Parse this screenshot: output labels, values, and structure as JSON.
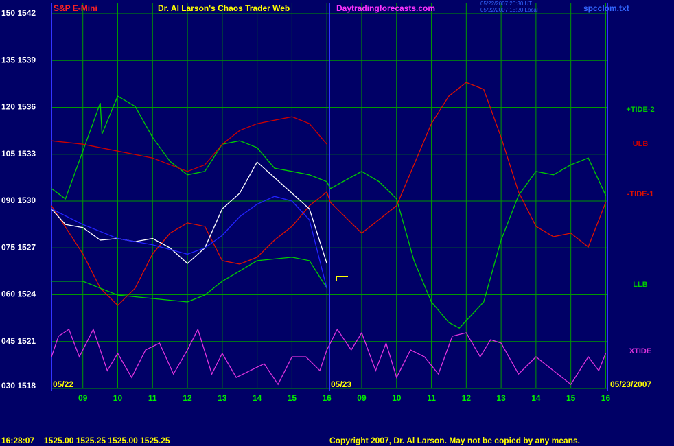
{
  "chart_data": {
    "type": "line",
    "title": "Dr. Al Larson's Chaos Trader Web",
    "symbol": "S&P E-Mini",
    "website": "Daytradingforecasts.com",
    "timestamps": [
      "05/22/2007 20:30 UT",
      "05/22/2007 15:20 Local"
    ],
    "file": "spcclom.txt",
    "date_labels": [
      "05/22",
      "05/23",
      "05/23/2007"
    ],
    "quote": {
      "time": "16:28:07",
      "prices": "1525.00 1525.25 1525.00 1525.25"
    },
    "copyright": "Copyright 2007, Dr. Al Larson. May not be copied by any means.",
    "grid": true,
    "xlim": [
      8.1,
      24.05
    ],
    "ylim": [
      30,
      150
    ],
    "y2lim": [
      1518,
      1542
    ],
    "xticks": [
      {
        "value": 9,
        "label": "09"
      },
      10,
      11,
      12,
      13,
      14,
      15,
      16,
      {
        "value": 17,
        "label": "09"
      },
      {
        "value": 18,
        "label": "10"
      },
      {
        "value": 19,
        "label": "11"
      },
      {
        "value": 20,
        "label": "12"
      },
      {
        "value": 21,
        "label": "13"
      },
      {
        "value": 22,
        "label": "14"
      },
      {
        "value": 23,
        "label": "15"
      },
      {
        "value": 24,
        "label": "16"
      }
    ],
    "yticks": [
      {
        "value": 150,
        "label": "150  1542"
      },
      {
        "value": 135,
        "label": "135  1539"
      },
      {
        "value": 120,
        "label": "120  1536"
      },
      {
        "value": 105,
        "label": "105  1533"
      },
      {
        "value": 90,
        "label": "090  1530"
      },
      {
        "value": 75,
        "label": "075  1527"
      },
      {
        "value": 60,
        "label": "060  1524"
      },
      {
        "value": 45,
        "label": "045  1521"
      },
      {
        "value": 30,
        "label": "030  1518"
      }
    ],
    "series": [
      {
        "name": "+TIDE-2",
        "color": "#00cc00",
        "x": [
          8.1,
          8.5,
          9,
          9.5,
          9.55,
          10,
          10.5,
          11,
          11.5,
          12,
          12.5,
          13,
          13.5,
          14,
          14.5,
          15,
          15.5,
          16,
          16.1,
          17,
          17.5,
          18,
          18.5,
          19,
          19.5,
          19.8,
          20.5,
          21,
          21.5,
          22,
          22.5,
          23,
          23.5,
          24
        ],
        "values": [
          94.0,
          90.7,
          106.0,
          121.4,
          111.5,
          123.6,
          120.3,
          110.4,
          102.7,
          98.4,
          99.5,
          108.2,
          109.3,
          107.1,
          100.5,
          99.5,
          98.4,
          96.2,
          94.0,
          99.5,
          96.2,
          90.7,
          70.9,
          57.7,
          51.1,
          49.3,
          57.7,
          77.5,
          91.8,
          99.5,
          98.4,
          101.6,
          103.8,
          91.8
        ]
      },
      {
        "name": "ULB",
        "color": "#cc0000",
        "x": [
          8.1,
          9,
          10,
          11,
          12,
          12.5,
          13,
          13.5,
          14,
          15,
          15.5,
          16
        ],
        "values": [
          109.3,
          108.2,
          106.0,
          103.8,
          99.5,
          101.6,
          108.2,
          112.6,
          114.8,
          117.0,
          114.8,
          108.2
        ]
      },
      {
        "name": "-TIDE-1",
        "color": "#dd1100",
        "x": [
          8.1,
          9,
          9.5,
          10,
          10.5,
          11,
          11.5,
          12,
          12.5,
          13,
          13.5,
          14,
          14.5,
          15,
          15.5,
          16,
          16.1,
          17,
          18,
          19,
          19.5,
          20,
          20.5,
          21,
          21.5,
          22,
          22.5,
          23,
          23.5,
          24
        ],
        "values": [
          88.5,
          73.1,
          62.1,
          56.6,
          62.1,
          73.1,
          79.7,
          83.0,
          81.9,
          70.9,
          69.8,
          72.0,
          77.5,
          81.9,
          88.5,
          92.9,
          89.6,
          79.7,
          88.5,
          114.8,
          123.6,
          128.0,
          125.8,
          110.4,
          92.9,
          81.9,
          78.6,
          79.7,
          75.3,
          89.6
        ]
      },
      {
        "name": "LLB",
        "color": "#00cc00",
        "x": [
          8.1,
          9,
          10,
          11,
          12,
          12.5,
          13,
          13.5,
          14,
          15,
          15.5,
          16
        ],
        "values": [
          64.3,
          64.3,
          59.9,
          58.8,
          57.7,
          59.9,
          64.3,
          67.6,
          70.9,
          72.0,
          70.9,
          62.1
        ]
      },
      {
        "name": "XTIDE",
        "color": "#dd33dd",
        "x": [
          8.1,
          8.3,
          8.6,
          8.9,
          9.3,
          9.7,
          10,
          10.4,
          10.8,
          11.2,
          11.6,
          12,
          12.3,
          12.7,
          13,
          13.4,
          13.8,
          14.2,
          14.6,
          15,
          15.4,
          15.8,
          16,
          16.3,
          16.7,
          17,
          17.4,
          17.7,
          18,
          18.4,
          18.8,
          19.2,
          19.6,
          20,
          20.4,
          20.7,
          21,
          21.5,
          22,
          22.5,
          23,
          23.5,
          23.8,
          24
        ],
        "values": [
          40.1,
          46.7,
          48.9,
          40.1,
          48.9,
          35.7,
          41.2,
          33.5,
          42.3,
          44.5,
          34.6,
          42.3,
          48.9,
          34.6,
          41.2,
          33.5,
          35.7,
          37.9,
          31.3,
          40.1,
          40.1,
          35.7,
          42.3,
          48.9,
          42.3,
          47.8,
          35.7,
          44.5,
          33.5,
          42.3,
          40.1,
          34.6,
          46.7,
          47.8,
          40.1,
          45.6,
          44.5,
          34.6,
          40.1,
          35.7,
          31.3,
          40.1,
          35.7,
          41.2
        ]
      },
      {
        "color": "#ffffff",
        "axis": "y2",
        "x": [
          8.1,
          8.5,
          9,
          9.5,
          10,
          10.5,
          11,
          11.5,
          12,
          12.5,
          13,
          13.5,
          14,
          14.5,
          15,
          15.5,
          16
        ],
        "values": [
          1529.5,
          1528.5,
          1528.3,
          1527.5,
          1527.6,
          1527.4,
          1527.6,
          1527.0,
          1526.0,
          1527.0,
          1529.5,
          1530.5,
          1532.5,
          1531.5,
          1530.5,
          1529.5,
          1526.0
        ]
      },
      {
        "color": "#2222ff",
        "axis": "y2",
        "x": [
          8.1,
          9,
          10,
          11,
          12,
          12.5,
          13,
          13.5,
          14,
          14.5,
          15,
          15.5,
          16
        ],
        "values": [
          1529.5,
          1528.5,
          1527.6,
          1527.2,
          1526.6,
          1527.0,
          1527.8,
          1529.0,
          1529.8,
          1530.3,
          1530.0,
          1528.8,
          1524.4
        ]
      }
    ]
  }
}
